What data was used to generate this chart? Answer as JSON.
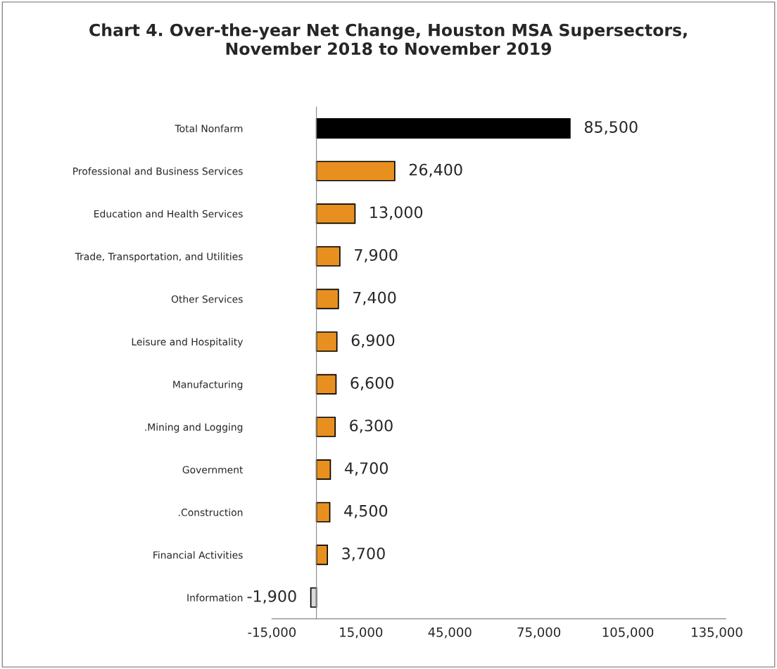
{
  "chart_data": {
    "type": "bar",
    "orientation": "horizontal",
    "title": "Chart 4. Over-the-year Net Change, Houston MSA Supersectors,\nNovember 2018 to November 2019",
    "categories": [
      "Total Nonfarm",
      "Professional and Business Services",
      "Education and Health Services",
      "Trade, Transportation, and Utilities",
      "Other Services",
      "Leisure and Hospitality",
      "Manufacturing",
      ".Mining and Logging",
      "Government",
      ".Construction",
      "Financial Activities",
      "Information"
    ],
    "values": [
      85500,
      26400,
      13000,
      7900,
      7400,
      6900,
      6600,
      6300,
      4700,
      4500,
      3700,
      -1900
    ],
    "colors": [
      "#000000",
      "#e8901f",
      "#e8901f",
      "#e8901f",
      "#e8901f",
      "#e8901f",
      "#e8901f",
      "#e8901f",
      "#e8901f",
      "#e8901f",
      "#e8901f",
      "#d9d9d9"
    ],
    "value_labels": [
      "85,500",
      "26,400",
      "13,000",
      "7,900",
      "7,400",
      "6,900",
      "6,600",
      "6,300",
      "4,700",
      "4,500",
      "3,700",
      "-1,900"
    ],
    "xlim": [
      -15000,
      138000
    ],
    "xticks": [
      {
        "value": -15000,
        "label": "-15,000"
      },
      {
        "value": 15000,
        "label": "15,000"
      },
      {
        "value": 45000,
        "label": "45,000"
      },
      {
        "value": 75000,
        "label": "75,000"
      },
      {
        "value": 105000,
        "label": "105,000"
      },
      {
        "value": 135000,
        "label": "135,000"
      }
    ],
    "grid": false,
    "legend": false
  }
}
